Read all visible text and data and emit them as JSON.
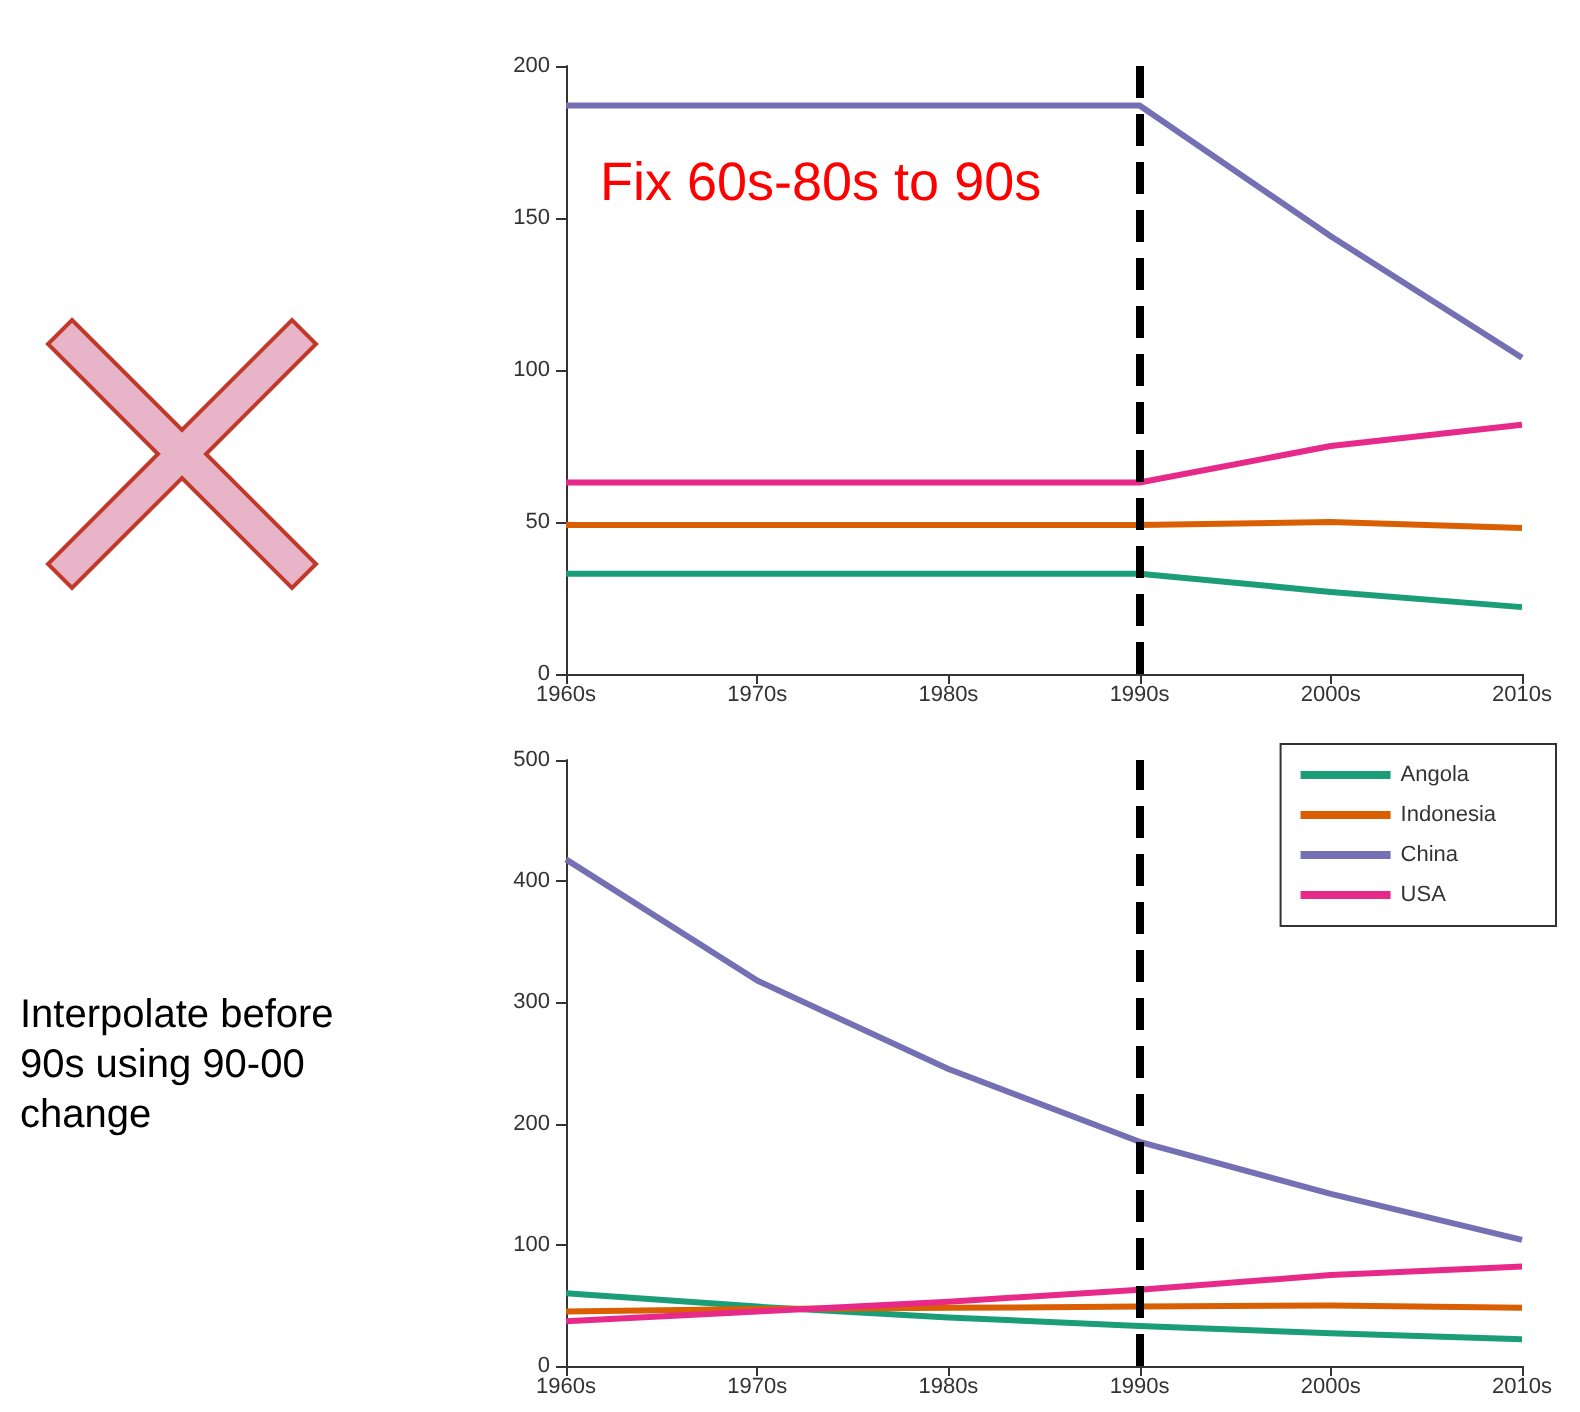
{
  "chart_data": [
    {
      "type": "line",
      "categories": [
        "1960s",
        "1970s",
        "1980s",
        "1990s",
        "2000s",
        "2010s"
      ],
      "ylim": [
        0,
        200
      ],
      "yticks": [
        0,
        50,
        100,
        150,
        200
      ],
      "grid": false,
      "legend": false,
      "marker": "none",
      "line_style": "solid",
      "series": [
        {
          "color": "#1b9e77",
          "values": [
            33,
            33,
            33,
            33,
            27,
            22
          ]
        },
        {
          "color": "#d95f02",
          "values": [
            49,
            49,
            49,
            49,
            50,
            48
          ]
        },
        {
          "color": "#7570b3",
          "values": [
            187,
            187,
            187,
            187,
            144,
            104
          ]
        },
        {
          "color": "#e7298a",
          "values": [
            63,
            63,
            63,
            63,
            75,
            82
          ]
        }
      ],
      "ref_lines": [
        {
          "axis": "x",
          "value": "1990s",
          "color": "#000000",
          "line_style": "dashed"
        }
      ],
      "annotations": [
        "Fix 60s-80s to 90s"
      ]
    },
    {
      "type": "line",
      "categories": [
        "1960s",
        "1970s",
        "1980s",
        "1990s",
        "2000s",
        "2010s"
      ],
      "ylim": [
        0,
        500
      ],
      "yticks": [
        0,
        100,
        200,
        300,
        400,
        500
      ],
      "grid": false,
      "legend": "top right",
      "marker": "none",
      "line_style": "solid",
      "series": [
        {
          "name": "Angola",
          "color": "#1b9e77",
          "values": [
            60,
            49,
            40,
            33,
            27,
            22
          ]
        },
        {
          "name": "Indonesia",
          "color": "#d95f02",
          "values": [
            45,
            47,
            48,
            49,
            50,
            48
          ]
        },
        {
          "name": "China",
          "color": "#7570b3",
          "values": [
            418,
            318,
            245,
            185,
            142,
            104
          ]
        },
        {
          "name": "USA",
          "color": "#e7298a",
          "values": [
            37,
            45,
            53,
            63,
            75,
            82
          ]
        }
      ],
      "ref_lines": [
        {
          "axis": "x",
          "value": "1990s",
          "color": "#000000",
          "line_style": "dashed"
        }
      ],
      "annotations": [
        "Interpolate before 90s using 90-00 change"
      ]
    }
  ]
}
